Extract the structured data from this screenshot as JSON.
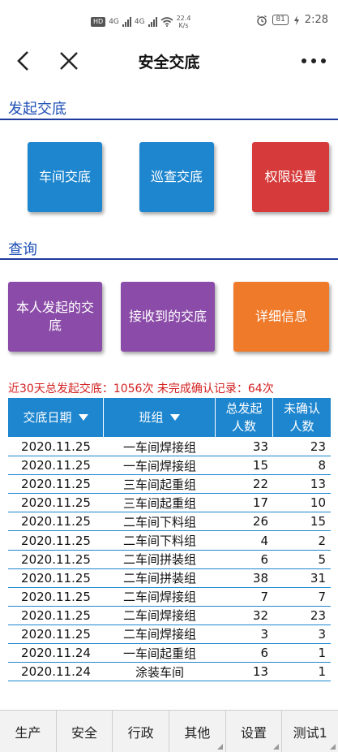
{
  "status_bar": {
    "hd": "HD",
    "net1": "4G",
    "net2": "4G",
    "speed_value": "22.4",
    "speed_unit": "K/s",
    "battery": "81",
    "time": "2:28"
  },
  "nav": {
    "title": "安全交底"
  },
  "section_launch": {
    "title": "发起交底",
    "buttons": [
      "车间交底",
      "巡查交底",
      "权限设置"
    ]
  },
  "section_query": {
    "title": "查询",
    "buttons": [
      "本人发起的交底",
      "接收到的交底",
      "详细信息"
    ]
  },
  "summary": {
    "text": "近30天总发起交底：1056次  未完成确认记录：64次"
  },
  "table": {
    "headers": {
      "date": "交底日期",
      "team": "班组",
      "total_line1": "总发起",
      "total_line2": "人数",
      "unconfirmed_line1": "未确认",
      "unconfirmed_line2": "人数"
    },
    "rows": [
      {
        "date": "2020.11.25",
        "team": "一车间焊接组",
        "total": "33",
        "unconfirmed": "23"
      },
      {
        "date": "2020.11.25",
        "team": "一车间焊接组",
        "total": "15",
        "unconfirmed": "8"
      },
      {
        "date": "2020.11.25",
        "team": "三车间起重组",
        "total": "22",
        "unconfirmed": "13"
      },
      {
        "date": "2020.11.25",
        "team": "三车间起重组",
        "total": "17",
        "unconfirmed": "10"
      },
      {
        "date": "2020.11.25",
        "team": "二车间下料组",
        "total": "26",
        "unconfirmed": "15"
      },
      {
        "date": "2020.11.25",
        "team": "二车间下料组",
        "total": "4",
        "unconfirmed": "2"
      },
      {
        "date": "2020.11.25",
        "team": "二车间拼装组",
        "total": "6",
        "unconfirmed": "5"
      },
      {
        "date": "2020.11.25",
        "team": "二车间拼装组",
        "total": "38",
        "unconfirmed": "31"
      },
      {
        "date": "2020.11.25",
        "team": "二车间焊接组",
        "total": "7",
        "unconfirmed": "7"
      },
      {
        "date": "2020.11.25",
        "team": "二车间焊接组",
        "total": "32",
        "unconfirmed": "23"
      },
      {
        "date": "2020.11.25",
        "team": "二车间焊接组",
        "total": "3",
        "unconfirmed": "3"
      },
      {
        "date": "2020.11.24",
        "team": "一车间起重组",
        "total": "6",
        "unconfirmed": "1"
      },
      {
        "date": "2020.11.24",
        "team": "涂装车间",
        "total": "13",
        "unconfirmed": "1"
      }
    ]
  },
  "tabs": [
    "生产",
    "安全",
    "行政",
    "其他",
    "设置",
    "测试1"
  ],
  "colors": {
    "accent_blue": "#1e86cf",
    "section_blue": "#1e4fb6",
    "red": "#d63a3a",
    "purple": "#8b4ba8",
    "orange": "#ef7a2a",
    "summary_red": "#d42020"
  }
}
